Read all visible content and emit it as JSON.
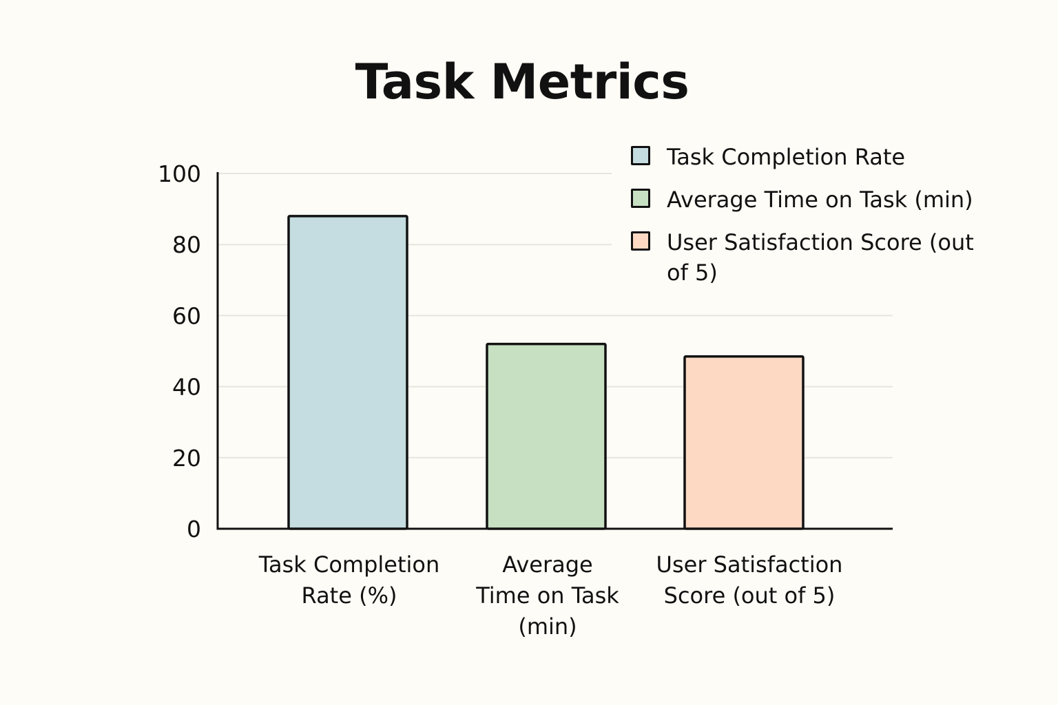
{
  "chart_data": {
    "type": "bar",
    "title": "Task Metrics",
    "xlabel": "",
    "ylabel": "",
    "ylim": [
      0,
      100
    ],
    "yticks": [
      "0",
      "20",
      "40",
      "60",
      "80",
      "100"
    ],
    "categories": [
      "Task Completion Rate (%)",
      "Average Time on Task (min)",
      "User Satisfaction Score (out of 5)"
    ],
    "values": [
      88,
      52,
      48.5
    ],
    "colors": [
      "#c5dce0",
      "#c7e0c2",
      "#fdd9c4"
    ],
    "grid": true,
    "legend_position": "top-right",
    "legend": [
      {
        "label": "Task Completion Rate",
        "color": "#c5dce0"
      },
      {
        "label": "Average Time on Task (min)",
        "color": "#c7e0c2"
      },
      {
        "label": "User Satisfaction Score (out of 5)",
        "color": "#fdd9c4"
      }
    ]
  }
}
